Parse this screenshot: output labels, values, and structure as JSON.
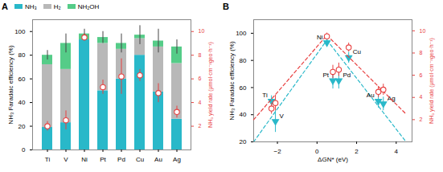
{
  "chart_data": [
    {
      "type": "bar",
      "title": "A",
      "stacked": true,
      "legend": "upper left",
      "categories": [
        "Ti",
        "V",
        "Ni",
        "Pt",
        "Pd",
        "Cu",
        "Au",
        "Ag"
      ],
      "ylabel": "NH₃ Faradaic efficiency (%)",
      "ylim": [
        0,
        110
      ],
      "yticks": [
        0,
        20,
        40,
        60,
        80,
        100
      ],
      "y2label": "NH₃ yield rate (μmol·cm⁻²geo·h⁻¹)",
      "y2lim": [
        0,
        11
      ],
      "y2ticks": [
        2,
        4,
        6,
        8,
        10
      ],
      "stack_errors": [
        4,
        8,
        4,
        5,
        8,
        8,
        10,
        6
      ],
      "series": [
        {
          "name": "NH₃",
          "color": "#29b8c9",
          "values": [
            19,
            23,
            93,
            50,
            60,
            80,
            49,
            26
          ]
        },
        {
          "name": "H₂",
          "color": "#b8b8b8",
          "values": [
            53,
            45,
            0,
            40,
            25,
            14,
            38,
            47
          ]
        },
        {
          "name": "NH₂OH",
          "color": "#55cc88",
          "values": [
            8,
            22,
            5,
            5,
            5,
            3,
            5,
            14
          ]
        },
        {
          "type": "scatter",
          "axis": "y2",
          "marker": "open_circle",
          "color": "#e84040",
          "values": [
            2.0,
            2.5,
            9.5,
            5.3,
            6.2,
            6.3,
            4.8,
            3.2
          ],
          "errors": [
            0.4,
            0.8,
            0.3,
            0.6,
            1.5,
            0.5,
            0.8,
            0.5
          ]
        }
      ]
    },
    {
      "type": "scatter",
      "title": "B",
      "xlabel": "ΔGN* (eV)",
      "xlim": [
        -3.2,
        4.8
      ],
      "xticks": [
        -2,
        0,
        2,
        4
      ],
      "ylabel": "NH₃ Faradaic efficiency (%)",
      "ylim": [
        20,
        110
      ],
      "yticks": [
        20,
        40,
        60,
        80,
        100
      ],
      "y2label": "NH₃ yield rate (μmol·cm⁻²geo·h⁻¹)",
      "y2lim": [
        0,
        11
      ],
      "y2ticks": [
        2,
        4,
        6,
        8,
        10
      ],
      "x": [
        -2.3,
        -2.1,
        0.5,
        0.8,
        1.1,
        1.6,
        3.1,
        3.35
      ],
      "series": [
        {
          "type": "line",
          "line_style": "dashed",
          "color": "#29b8c9",
          "x": [
            -3.2,
            0.5
          ],
          "values": [
            20,
            95
          ]
        },
        {
          "type": "line",
          "line_style": "dashed",
          "color": "#29b8c9",
          "x": [
            0.5,
            4.5
          ],
          "values": [
            95,
            20
          ]
        },
        {
          "type": "line",
          "line_style": "dashed",
          "axis": "y2",
          "color": "#e84040",
          "x": [
            -3.2,
            0.5
          ],
          "values": [
            2.0,
            9.6
          ]
        },
        {
          "type": "line",
          "line_style": "dashed",
          "axis": "y2",
          "color": "#e84040",
          "x": [
            0.5,
            4.5
          ],
          "values": [
            9.6,
            2.5
          ]
        },
        {
          "type": "scatter",
          "marker": "triangle_down",
          "color": "#29b8c9",
          "values": [
            50,
            35,
            93,
            65,
            65,
            82,
            50,
            48
          ],
          "errors": [
            4,
            8,
            3,
            6,
            6,
            4,
            5,
            5
          ]
        },
        {
          "type": "scatter",
          "axis": "y2",
          "marker": "open_circle",
          "color": "#e84040",
          "values": [
            3.0,
            3.5,
            9.5,
            6.3,
            6.5,
            8.5,
            4.5,
            4.7
          ],
          "errors": [
            0.5,
            0.7,
            0.3,
            0.6,
            0.6,
            0.4,
            0.5,
            0.5
          ]
        }
      ],
      "annotations": [
        {
          "text": "Ti",
          "x": -2.3,
          "y": 50
        },
        {
          "text": "V",
          "x": -2.1,
          "y": 35
        },
        {
          "text": "Ni",
          "x": 0.5,
          "y": 93
        },
        {
          "text": "Pt",
          "x": 0.8,
          "y": 65
        },
        {
          "text": "Pd",
          "x": 1.1,
          "y": 65
        },
        {
          "text": "Cu",
          "x": 1.6,
          "y": 82
        },
        {
          "text": "Au",
          "x": 3.1,
          "y": 50
        },
        {
          "text": "Ag",
          "x": 3.35,
          "y": 48
        }
      ]
    }
  ]
}
